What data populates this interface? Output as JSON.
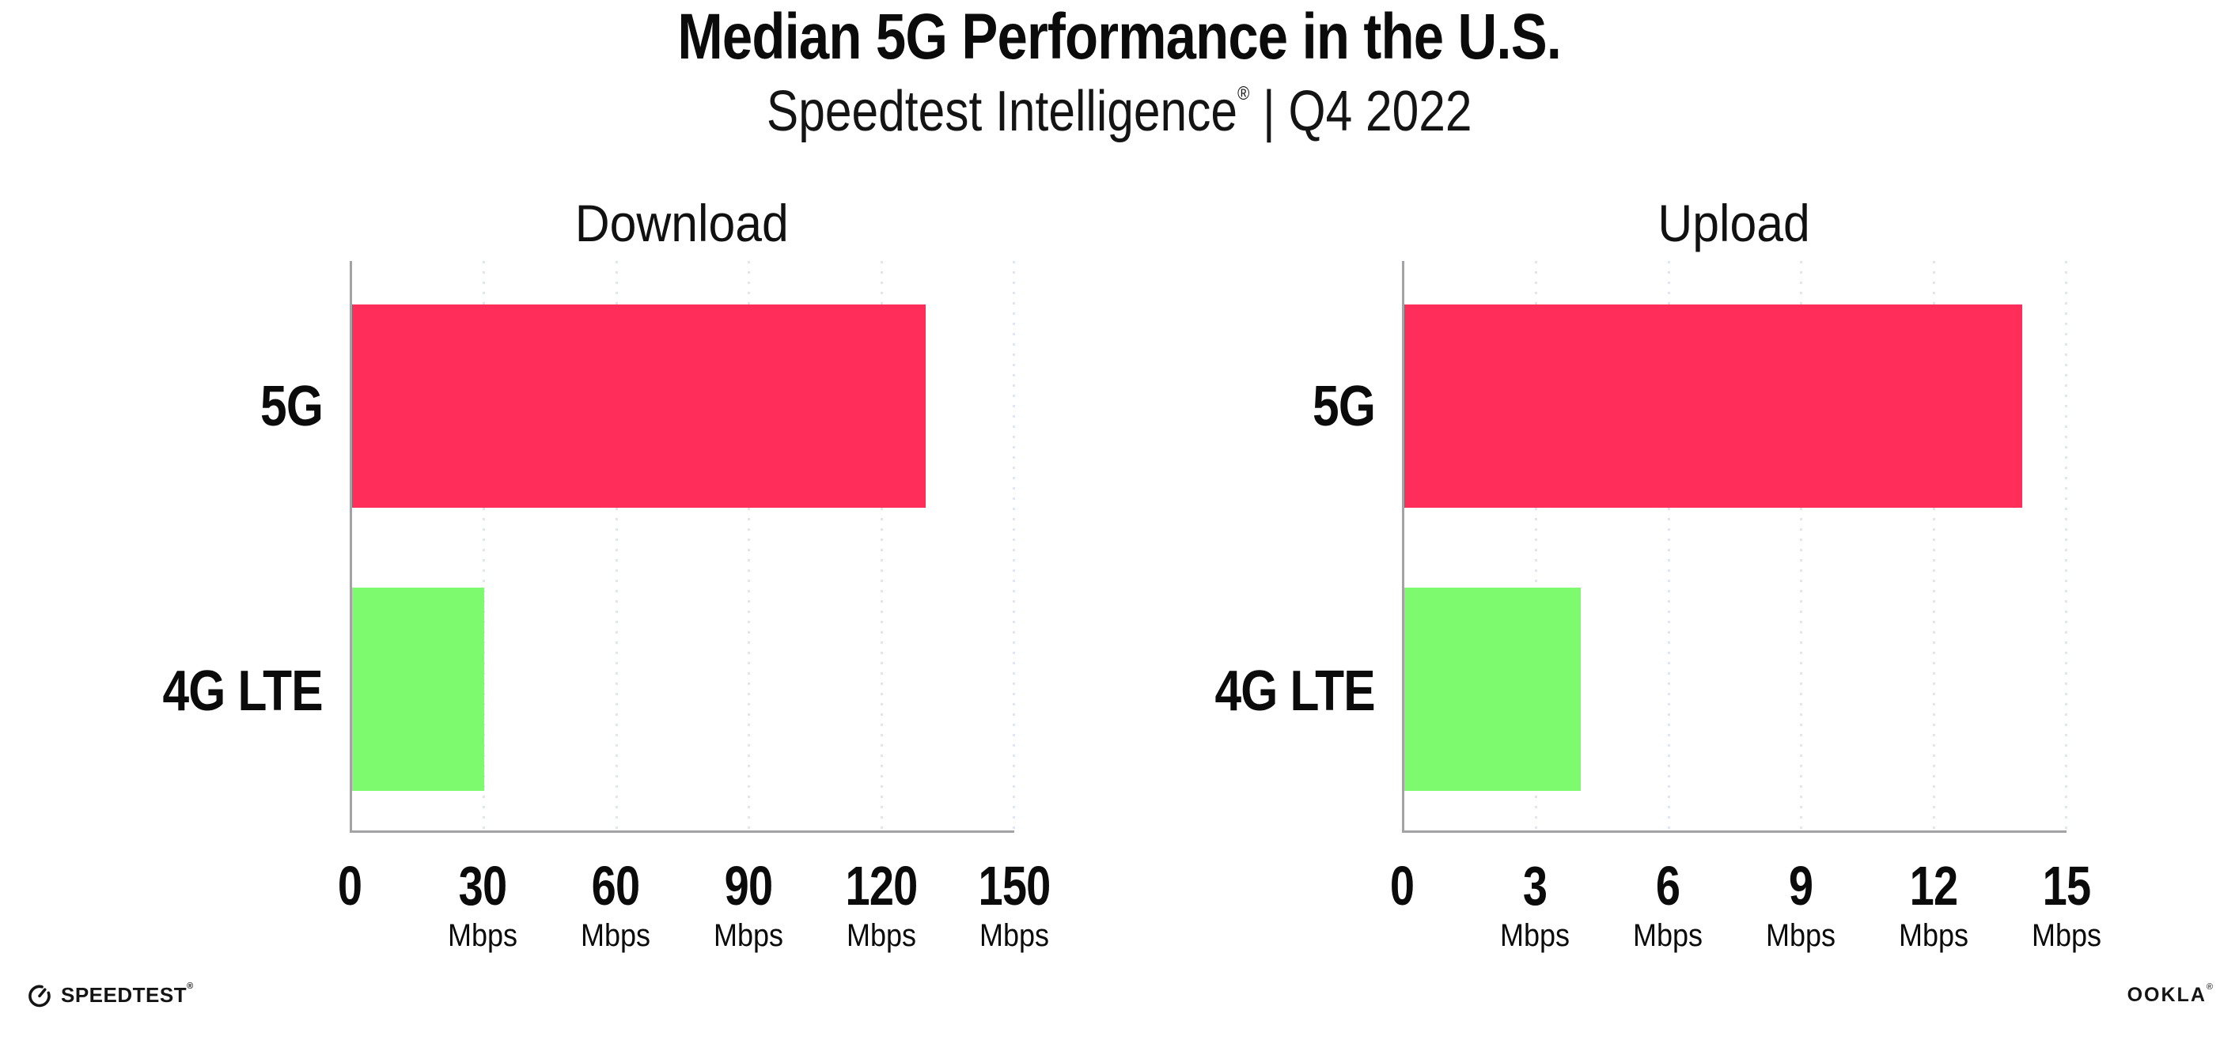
{
  "header": {
    "title": "Median 5G Performance in the U.S.",
    "subtitle": {
      "brand": "Speedtest Intelligence",
      "reg": "®",
      "separator": "|",
      "period": "Q4 2022"
    }
  },
  "colors": {
    "bar_5g": "#ff2d59",
    "bar_4g_lte": "#7dfa6e",
    "axis_line": "#a3a3a6",
    "gridline_dots": "#e2e4f0",
    "text": "#0b0b0b"
  },
  "chart_data": [
    {
      "type": "bar",
      "orientation": "horizontal",
      "title": "Download",
      "categories": [
        "5G",
        "4G LTE"
      ],
      "values": [
        130,
        30
      ],
      "unit": "Mbps",
      "xlim": [
        0,
        150
      ],
      "xticks": [
        0,
        30,
        60,
        90,
        120,
        150
      ],
      "bar_colors": [
        "#ff2d59",
        "#7dfa6e"
      ],
      "grid": "dotted-vertical",
      "legend": "none"
    },
    {
      "type": "bar",
      "orientation": "horizontal",
      "title": "Upload",
      "categories": [
        "5G",
        "4G LTE"
      ],
      "values": [
        14,
        4
      ],
      "unit": "Mbps",
      "xlim": [
        0,
        15
      ],
      "xticks": [
        0,
        3,
        6,
        9,
        12,
        15
      ],
      "bar_colors": [
        "#ff2d59",
        "#7dfa6e"
      ],
      "grid": "dotted-vertical",
      "legend": "none"
    }
  ],
  "footer": {
    "speedtest": {
      "text": "SPEEDTEST",
      "mark": "®"
    },
    "ookla": {
      "text": "OOKLA",
      "mark": "®"
    }
  }
}
